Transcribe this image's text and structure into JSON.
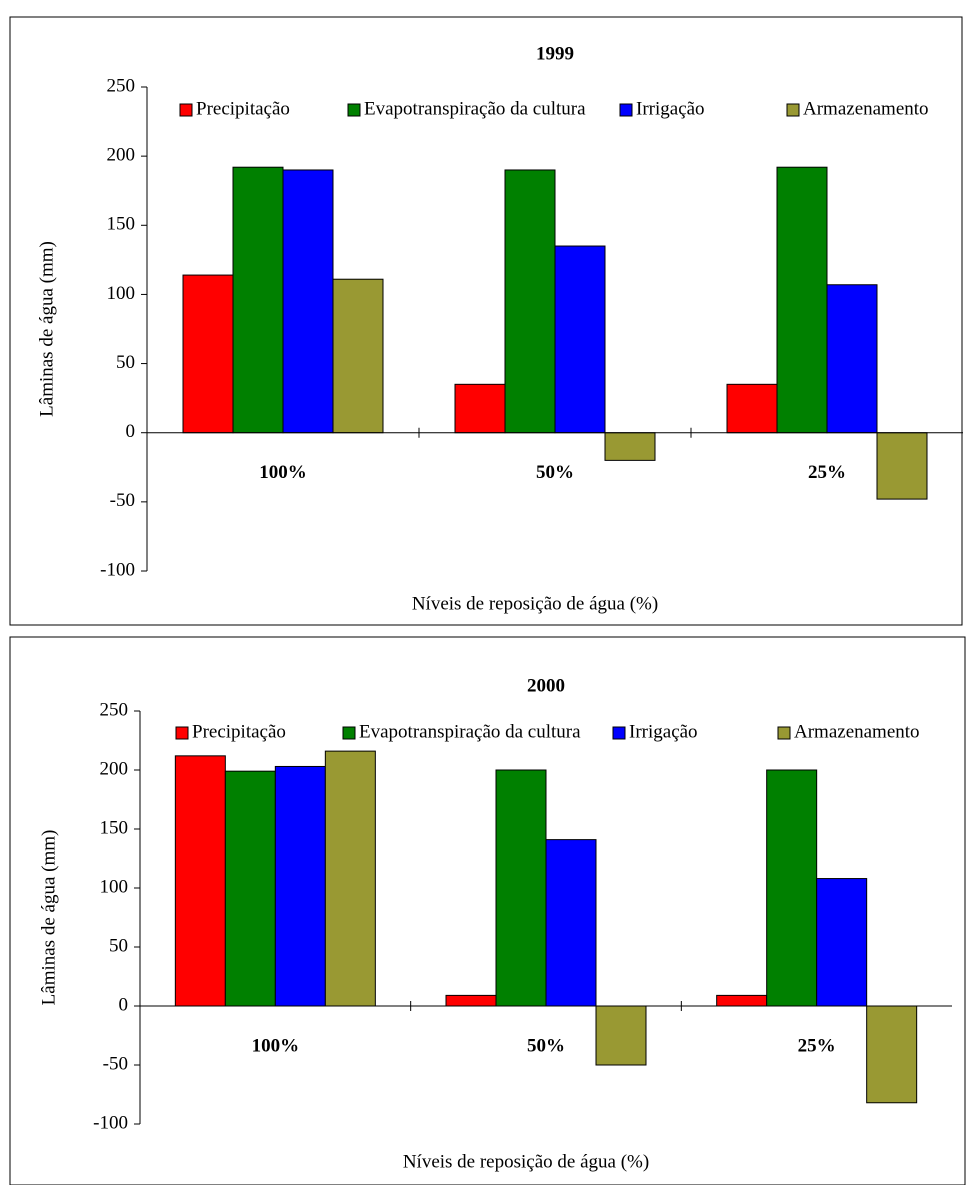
{
  "chart_data": [
    {
      "type": "bar",
      "title": "1999",
      "x_label": "Níveis de reposição de água (%)",
      "y_label": "Lâminas de água (mm)",
      "categories": [
        "100%",
        "50%",
        "25%"
      ],
      "series": [
        {
          "name": "Precipitação",
          "color": "#ff0000",
          "values": [
            114,
            35,
            35
          ]
        },
        {
          "name": "Evapotranspiração da cultura",
          "color": "#008000",
          "values": [
            192,
            190,
            192
          ]
        },
        {
          "name": "Irrigação",
          "color": "#0000ff",
          "values": [
            190,
            135,
            107
          ]
        },
        {
          "name": "Armazenamento",
          "color": "#999933",
          "values": [
            111,
            -20,
            -48
          ]
        }
      ],
      "ylim": [
        -100,
        250
      ],
      "yticks": [
        -100,
        -50,
        0,
        50,
        100,
        150,
        200,
        250
      ]
    },
    {
      "type": "bar",
      "title": "2000",
      "x_label": "Níveis de reposição de água (%)",
      "y_label": "Lâminas de água (mm)",
      "categories": [
        "100%",
        "50%",
        "25%"
      ],
      "series": [
        {
          "name": "Precipitação",
          "color": "#ff0000",
          "values": [
            212,
            9,
            9
          ]
        },
        {
          "name": "Evapotranspiração da cultura",
          "color": "#008000",
          "values": [
            199,
            200,
            200
          ]
        },
        {
          "name": "Irrigação",
          "color": "#0000ff",
          "values": [
            203,
            141,
            108
          ]
        },
        {
          "name": "Armazenamento",
          "color": "#999933",
          "values": [
            216,
            -50,
            -82
          ]
        }
      ],
      "ylim": [
        -100,
        250
      ],
      "yticks": [
        -100,
        -50,
        0,
        50,
        100,
        150,
        200,
        250
      ]
    }
  ]
}
